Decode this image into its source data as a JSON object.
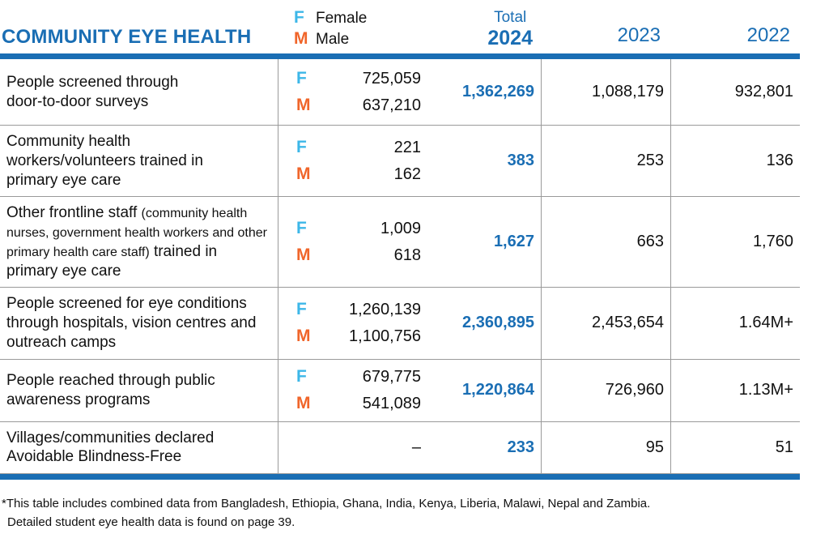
{
  "title": "COMMUNITY EYE HEALTH",
  "legend": {
    "female_symbol": "F",
    "female_label": "Female",
    "male_symbol": "M",
    "male_label": "Male"
  },
  "columns": {
    "total_label": "Total",
    "year_2024": "2024",
    "year_2023": "2023",
    "year_2022": "2022"
  },
  "colors": {
    "accent_blue": "#1a6eb4",
    "female_blue": "#3db7e8",
    "male_orange": "#f0652a",
    "grid_gray": "#9a9a9a"
  },
  "rows": [
    {
      "label": "People screened through door-to-door surveys",
      "f": "725,059",
      "m": "637,210",
      "total": "1,362,269",
      "y2023": "1,088,179",
      "y2022": "932,801"
    },
    {
      "label": "Community health workers/volunteers trained in primary eye care",
      "f": "221",
      "m": "162",
      "total": "383",
      "y2023": "253",
      "y2022": "136"
    },
    {
      "label_start": "Other frontline staff ",
      "label_paren": "(community health nurses, government health workers and other primary health care staff)",
      "label_end": " trained in primary eye care",
      "f": "1,009",
      "m": "618",
      "total": "1,627",
      "y2023": "663",
      "y2022": "1,760"
    },
    {
      "label": "People screened for eye conditions through hospitals, vision centres and outreach camps",
      "f": "1,260,139",
      "m": "1,100,756",
      "total": "2,360,895",
      "y2023": "2,453,654",
      "y2022": "1.64M+"
    },
    {
      "label": "People reached through public awareness programs",
      "f": "679,775",
      "m": "541,089",
      "total": "1,220,864",
      "y2023": "726,960",
      "y2022": "1.13M+"
    },
    {
      "label": "Villages/communities declared Avoidable Blindness-Free",
      "dash": "–",
      "total": "233",
      "y2023": "95",
      "y2022": "51"
    }
  ],
  "footnote": {
    "line1": "*This table includes combined data from Bangladesh, Ethiopia, Ghana, India, Kenya, Liberia, Malawi, Nepal and Zambia.",
    "line2": "Detailed student eye health data is found on page 39."
  }
}
